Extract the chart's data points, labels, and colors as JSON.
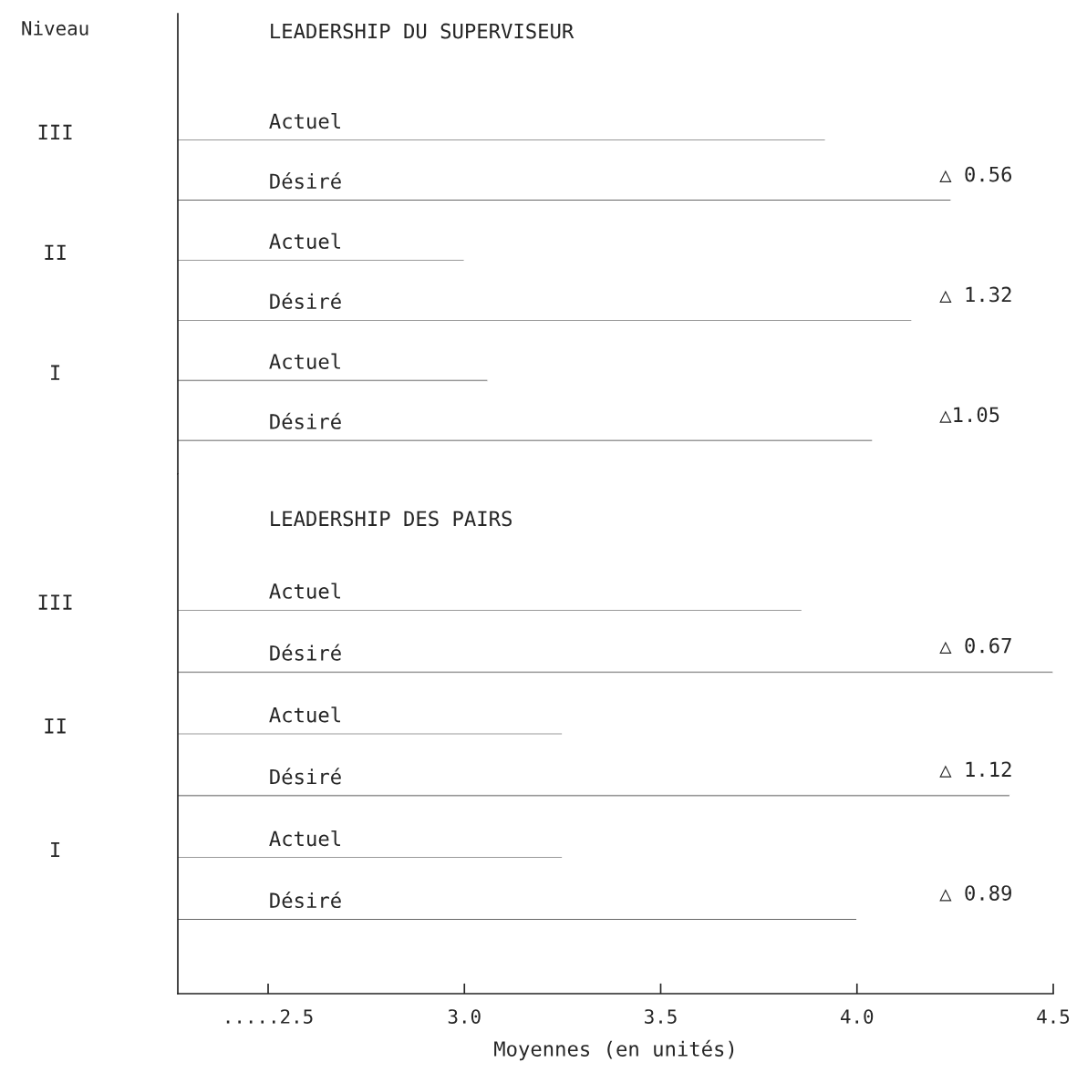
{
  "chart_data": [
    {
      "type": "bar",
      "orientation": "horizontal",
      "title": "LEADERSHIP DU SUPERVISEUR",
      "ylabel": "Niveau",
      "tick_labels": "y",
      "color": "#333333",
      "categories": [
        "Actuel",
        "Désiré",
        "Actuel",
        "Désiré",
        "Actuel",
        "Désiré"
      ],
      "values": [
        3.92,
        4.24,
        3.0,
        4.14,
        3.06,
        4.04
      ],
      "xlim": [
        2.27,
        4.5
      ],
      "annotations": [
        "III",
        "II",
        "I",
        "△ 0.56",
        "△ 1.32",
        "△1.05"
      ]
    },
    {
      "type": "bar",
      "orientation": "horizontal",
      "title": "LEADERSHIP DES PAIRS",
      "xlabel": "Moyennes (en unités)",
      "color": "#333333",
      "categories": [
        "Actuel",
        "Désiré",
        "Actuel",
        "Désiré",
        "Actuel",
        "Désiré"
      ],
      "values": [
        3.86,
        4.5,
        3.25,
        4.39,
        3.25,
        4.0
      ],
      "xlim": [
        2.27,
        4.5
      ],
      "xticks": [
        {
          "value": 2.5,
          "label": ".....2.5"
        },
        {
          "value": 3.0,
          "label": "3.0"
        },
        {
          "value": 3.5,
          "label": "3.5"
        },
        {
          "value": 4.0,
          "label": "4.0"
        },
        {
          "value": 4.5,
          "label": "4.5"
        }
      ],
      "annotations": [
        "III",
        "II",
        "I",
        "△ 0.67",
        "△ 1.12",
        "△ 0.89"
      ]
    }
  ]
}
